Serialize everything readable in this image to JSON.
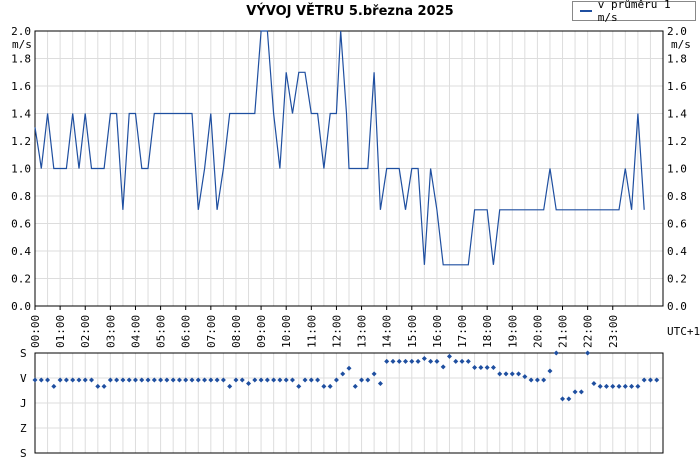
{
  "chart_data": [
    {
      "type": "line",
      "title": "VÝVOJ VĚTRU  5.března 2025",
      "ylabel": "m/s",
      "ylim": [
        0,
        2
      ],
      "yticks": [
        "0.0",
        "0.2",
        "0.4",
        "0.6",
        "0.8",
        "1.0",
        "1.2",
        "1.4",
        "1.6",
        "1.8",
        "2.0"
      ],
      "xticks": [
        "00:00",
        "01:00",
        "02:00",
        "03:00",
        "04:00",
        "05:00",
        "06:00",
        "07:00",
        "08:00",
        "09:00",
        "10:00",
        "11:00",
        "12:00",
        "13:00",
        "14:00",
        "15:00",
        "16:00",
        "17:00",
        "18:00",
        "19:00",
        "20:00",
        "21:00",
        "22:00",
        "23:00"
      ],
      "timezone_label": "UTC+1",
      "grid": true,
      "legend_position": "top-right",
      "series": [
        {
          "name": "v průměru 1 m/s",
          "color": "#1f4fa0",
          "points": [
            [
              0.0,
              1.3
            ],
            [
              0.17,
              1.1
            ],
            [
              0.25,
              1.0
            ],
            [
              0.5,
              1.4
            ],
            [
              0.75,
              1.0
            ],
            [
              1.0,
              1.0
            ],
            [
              1.25,
              1.0
            ],
            [
              1.5,
              1.4
            ],
            [
              1.75,
              1.0
            ],
            [
              2.0,
              1.4
            ],
            [
              2.25,
              1.0
            ],
            [
              2.5,
              1.0
            ],
            [
              2.75,
              1.0
            ],
            [
              3.0,
              1.4
            ],
            [
              3.25,
              1.4
            ],
            [
              3.5,
              0.7
            ],
            [
              3.75,
              1.4
            ],
            [
              4.0,
              1.4
            ],
            [
              4.25,
              1.0
            ],
            [
              4.5,
              1.0
            ],
            [
              4.75,
              1.4
            ],
            [
              5.0,
              1.4
            ],
            [
              5.5,
              1.4
            ],
            [
              6.0,
              1.4
            ],
            [
              6.25,
              1.4
            ],
            [
              6.5,
              0.7
            ],
            [
              6.75,
              1.0
            ],
            [
              7.0,
              1.4
            ],
            [
              7.25,
              0.7
            ],
            [
              7.5,
              1.0
            ],
            [
              7.75,
              1.4
            ],
            [
              8.0,
              1.4
            ],
            [
              8.5,
              1.4
            ],
            [
              8.75,
              1.4
            ],
            [
              9.0,
              2.0
            ],
            [
              9.25,
              2.0
            ],
            [
              9.5,
              1.4
            ],
            [
              9.75,
              1.0
            ],
            [
              10.0,
              1.7
            ],
            [
              10.25,
              1.4
            ],
            [
              10.5,
              1.7
            ],
            [
              10.75,
              1.7
            ],
            [
              11.0,
              1.4
            ],
            [
              11.25,
              1.4
            ],
            [
              11.5,
              1.0
            ],
            [
              11.75,
              1.4
            ],
            [
              12.0,
              1.4
            ],
            [
              12.17,
              2.0
            ],
            [
              12.4,
              1.4
            ],
            [
              12.5,
              1.0
            ],
            [
              12.75,
              1.0
            ],
            [
              13.0,
              1.0
            ],
            [
              13.25,
              1.0
            ],
            [
              13.5,
              1.7
            ],
            [
              13.75,
              0.7
            ],
            [
              14.0,
              1.0
            ],
            [
              14.25,
              1.0
            ],
            [
              14.5,
              1.0
            ],
            [
              14.75,
              0.7
            ],
            [
              15.0,
              1.0
            ],
            [
              15.25,
              1.0
            ],
            [
              15.5,
              0.3
            ],
            [
              15.75,
              1.0
            ],
            [
              16.0,
              0.7
            ],
            [
              16.25,
              0.3
            ],
            [
              16.5,
              0.3
            ],
            [
              16.75,
              0.3
            ],
            [
              17.0,
              0.3
            ],
            [
              17.25,
              0.3
            ],
            [
              17.5,
              0.7
            ],
            [
              17.75,
              0.7
            ],
            [
              18.0,
              0.7
            ],
            [
              18.25,
              0.3
            ],
            [
              18.5,
              0.7
            ],
            [
              18.75,
              0.7
            ],
            [
              19.0,
              0.7
            ],
            [
              19.5,
              0.7
            ],
            [
              20.0,
              0.7
            ],
            [
              20.25,
              0.7
            ],
            [
              20.5,
              1.0
            ],
            [
              20.75,
              0.7
            ],
            [
              21.0,
              0.7
            ],
            [
              21.5,
              0.7
            ],
            [
              22.0,
              0.7
            ],
            [
              22.5,
              0.7
            ],
            [
              23.0,
              0.7
            ],
            [
              23.25,
              0.7
            ],
            [
              23.5,
              1.0
            ],
            [
              23.75,
              0.7
            ],
            [
              24.0,
              1.4
            ],
            [
              24.25,
              0.7
            ]
          ]
        }
      ]
    },
    {
      "type": "scatter",
      "yticks": [
        "S",
        "V",
        "J",
        "Z",
        "S"
      ],
      "series": [
        {
          "color": "#1f4fa0",
          "points": [
            [
              0.0,
              263
            ],
            [
              0.25,
              263
            ],
            [
              0.5,
              263
            ],
            [
              0.75,
              240
            ],
            [
              1.0,
              263
            ],
            [
              1.25,
              263
            ],
            [
              1.5,
              263
            ],
            [
              1.75,
              263
            ],
            [
              2.0,
              263
            ],
            [
              2.25,
              263
            ],
            [
              2.5,
              240
            ],
            [
              2.75,
              240
            ],
            [
              3.0,
              263
            ],
            [
              3.25,
              263
            ],
            [
              3.5,
              263
            ],
            [
              3.75,
              263
            ],
            [
              4.0,
              263
            ],
            [
              4.25,
              263
            ],
            [
              4.5,
              263
            ],
            [
              4.75,
              263
            ],
            [
              5.0,
              263
            ],
            [
              5.25,
              263
            ],
            [
              5.5,
              263
            ],
            [
              5.75,
              263
            ],
            [
              6.0,
              263
            ],
            [
              6.25,
              263
            ],
            [
              6.5,
              263
            ],
            [
              6.75,
              263
            ],
            [
              7.0,
              263
            ],
            [
              7.25,
              263
            ],
            [
              7.5,
              263
            ],
            [
              7.75,
              240
            ],
            [
              8.0,
              263
            ],
            [
              8.25,
              263
            ],
            [
              8.5,
              250
            ],
            [
              8.75,
              263
            ],
            [
              9.0,
              263
            ],
            [
              9.25,
              263
            ],
            [
              9.5,
              263
            ],
            [
              9.75,
              263
            ],
            [
              10.0,
              263
            ],
            [
              10.25,
              263
            ],
            [
              10.5,
              240
            ],
            [
              10.75,
              263
            ],
            [
              11.0,
              263
            ],
            [
              11.25,
              263
            ],
            [
              11.5,
              240
            ],
            [
              11.75,
              240
            ],
            [
              12.0,
              263
            ],
            [
              12.25,
              285
            ],
            [
              12.5,
              305
            ],
            [
              12.75,
              240
            ],
            [
              13.0,
              263
            ],
            [
              13.25,
              263
            ],
            [
              13.5,
              285
            ],
            [
              13.75,
              250
            ],
            [
              14.0,
              330
            ],
            [
              14.25,
              330
            ],
            [
              14.5,
              330
            ],
            [
              14.75,
              330
            ],
            [
              15.0,
              330
            ],
            [
              15.25,
              330
            ],
            [
              15.5,
              340
            ],
            [
              15.75,
              330
            ],
            [
              16.0,
              330
            ],
            [
              16.25,
              310
            ],
            [
              16.5,
              348
            ],
            [
              16.75,
              330
            ],
            [
              17.0,
              330
            ],
            [
              17.25,
              330
            ],
            [
              17.5,
              308
            ],
            [
              17.75,
              308
            ],
            [
              18.0,
              308
            ],
            [
              18.25,
              308
            ],
            [
              18.5,
              285
            ],
            [
              18.75,
              285
            ],
            [
              19.0,
              285
            ],
            [
              19.25,
              285
            ],
            [
              19.5,
              275
            ],
            [
              19.75,
              263
            ],
            [
              20.0,
              263
            ],
            [
              20.25,
              263
            ],
            [
              20.5,
              295
            ],
            [
              20.75,
              360
            ],
            [
              21.0,
              195
            ],
            [
              21.25,
              195
            ],
            [
              21.5,
              220
            ],
            [
              21.75,
              220
            ],
            [
              22.0,
              360
            ],
            [
              22.25,
              250
            ],
            [
              22.5,
              240
            ],
            [
              22.75,
              240
            ],
            [
              23.0,
              240
            ],
            [
              23.25,
              240
            ],
            [
              23.5,
              240
            ],
            [
              23.75,
              240
            ],
            [
              24.0,
              240
            ],
            [
              24.25,
              263
            ],
            [
              24.5,
              263
            ],
            [
              24.75,
              263
            ]
          ]
        }
      ]
    }
  ]
}
